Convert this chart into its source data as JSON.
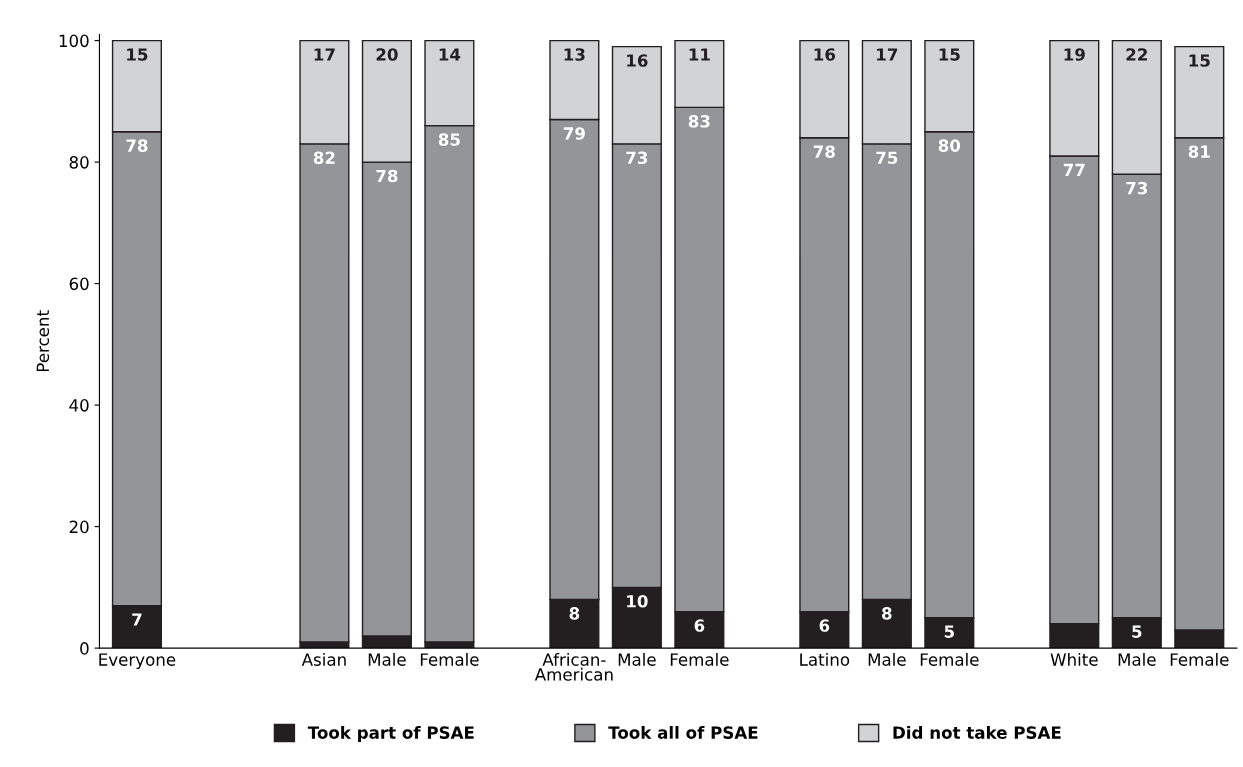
{
  "chart_data": {
    "type": "bar",
    "stacked": true,
    "ylabel": "Percent",
    "categories": [
      "Everyone",
      null,
      null,
      "Asian",
      "Male",
      "Female",
      null,
      "African-\nAmerican",
      "Male",
      "Female",
      null,
      "Latino",
      "Male",
      "Female",
      null,
      "White",
      "Male",
      "Female"
    ],
    "series": [
      {
        "name": "Took part of PSAE",
        "color": "#231f20",
        "values": [
          7,
          null,
          null,
          1,
          2,
          1,
          null,
          8,
          10,
          6,
          null,
          6,
          8,
          5,
          null,
          4,
          5,
          3
        ],
        "value_labels": [
          "7",
          null,
          null,
          null,
          null,
          null,
          null,
          "8",
          "10",
          "6",
          null,
          "6",
          "8",
          "5",
          null,
          null,
          "5",
          null
        ]
      },
      {
        "name": "Took all of PSAE",
        "color": "#939598",
        "values": [
          78,
          null,
          null,
          82,
          78,
          85,
          null,
          79,
          73,
          83,
          null,
          78,
          75,
          80,
          null,
          77,
          73,
          81
        ],
        "value_labels": [
          "78",
          null,
          null,
          "82",
          "78",
          "85",
          null,
          "79",
          "73",
          "83",
          null,
          "78",
          "75",
          "80",
          null,
          "77",
          "73",
          "81"
        ]
      },
      {
        "name": "Did not take PSAE",
        "color": "#d1d3d4",
        "values": [
          15,
          null,
          null,
          17,
          20,
          14,
          null,
          13,
          16,
          11,
          null,
          16,
          17,
          15,
          null,
          19,
          22,
          15
        ],
        "value_labels": [
          "15",
          null,
          null,
          "17",
          "20",
          "14",
          null,
          "13",
          "16",
          "11",
          null,
          "16",
          "17",
          "15",
          null,
          "19",
          "22",
          "15"
        ]
      }
    ],
    "ylim": [
      0,
      101
    ],
    "yticks": [
      0,
      20,
      40,
      60,
      80,
      100
    ],
    "grid": false,
    "legend": "bottom"
  }
}
